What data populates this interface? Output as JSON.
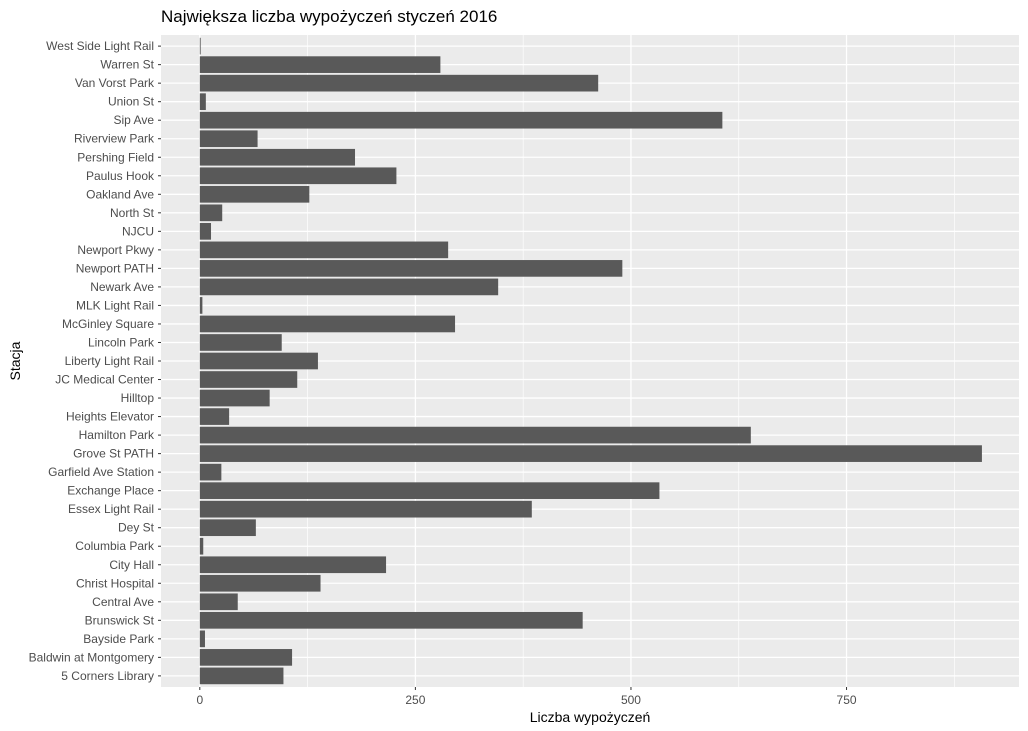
{
  "chart_data": {
    "type": "bar",
    "orientation": "horizontal",
    "title": "Największa liczba wypożyczeń styczeń 2016",
    "xlabel": "Liczba wypożyczeń",
    "ylabel": "Stacja",
    "xlim": [
      -45,
      950
    ],
    "xticks": [
      0,
      250,
      500,
      750
    ],
    "xtick_labels": [
      "0",
      "250",
      "500",
      "750"
    ],
    "grid": true,
    "categories": [
      "5 Corners Library",
      "Baldwin at Montgomery",
      "Bayside Park",
      "Brunswick St",
      "Central Ave",
      "Christ Hospital",
      "City Hall",
      "Columbia Park",
      "Dey St",
      "Essex Light Rail",
      "Exchange Place",
      "Garfield Ave Station",
      "Grove St PATH",
      "Hamilton Park",
      "Heights Elevator",
      "Hilltop",
      "JC Medical Center",
      "Liberty Light Rail",
      "Lincoln Park",
      "McGinley Square",
      "MLK Light Rail",
      "Newark Ave",
      "Newport PATH",
      "Newport Pkwy",
      "NJCU",
      "North St",
      "Oakland Ave",
      "Paulus Hook",
      "Pershing Field",
      "Riverview Park",
      "Sip Ave",
      "Union St",
      "Van Vorst Park",
      "Warren St",
      "West Side Light Rail"
    ],
    "values": [
      97,
      107,
      6,
      444,
      44,
      140,
      216,
      4,
      65,
      385,
      533,
      25,
      907,
      639,
      34,
      81,
      113,
      137,
      95,
      296,
      3,
      346,
      490,
      288,
      13,
      26,
      127,
      228,
      180,
      67,
      606,
      7,
      462,
      279,
      1
    ],
    "colors": {
      "panel_background": "#ebebeb",
      "grid_major": "#ffffff",
      "bar_fill": "#595959",
      "tick_text": "#4d4d4d",
      "tick_mark": "#333333",
      "text": "#000000"
    }
  }
}
